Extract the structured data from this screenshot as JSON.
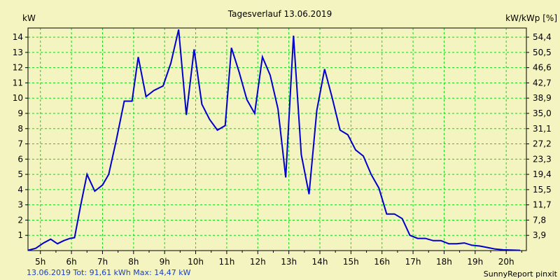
{
  "chart_data": {
    "type": "line",
    "title": "Tagesverlauf 13.06.2019",
    "ylabel_left": "kW",
    "ylabel_right": "kW/kWp [%]",
    "x_ticks": [
      "5h",
      "6h",
      "7h",
      "8h",
      "9h",
      "10h",
      "11h",
      "12h",
      "13h",
      "14h",
      "15h",
      "16h",
      "17h",
      "18h",
      "19h",
      "20h"
    ],
    "x_range_hours": [
      4.6,
      20.65
    ],
    "y_ticks_left": [
      "1",
      "2",
      "3",
      "4",
      "5",
      "6",
      "7",
      "8",
      "9",
      "10",
      "11",
      "12",
      "13",
      "14"
    ],
    "y_ticks_right": [
      "3,9",
      "7,8",
      "11,7",
      "15,5",
      "19,4",
      "23,3",
      "27,2",
      "31,1",
      "35,0",
      "38,9",
      "42,7",
      "46,6",
      "50,5",
      "54,4"
    ],
    "ylim": [
      0,
      14.6
    ],
    "grid": true,
    "series": [
      {
        "color": "#0000cc",
        "points": [
          [
            4.6,
            0.02
          ],
          [
            4.85,
            0.15
          ],
          [
            5.1,
            0.5
          ],
          [
            5.33,
            0.75
          ],
          [
            5.55,
            0.45
          ],
          [
            5.75,
            0.65
          ],
          [
            5.95,
            0.8
          ],
          [
            6.1,
            0.85
          ],
          [
            6.3,
            3.0
          ],
          [
            6.5,
            5.0
          ],
          [
            6.75,
            3.9
          ],
          [
            7.0,
            4.3
          ],
          [
            7.2,
            5.0
          ],
          [
            7.45,
            7.3
          ],
          [
            7.7,
            9.8
          ],
          [
            7.95,
            9.8
          ],
          [
            8.15,
            12.7
          ],
          [
            8.4,
            10.1
          ],
          [
            8.65,
            10.5
          ],
          [
            8.95,
            10.8
          ],
          [
            9.2,
            12.3
          ],
          [
            9.45,
            14.5
          ],
          [
            9.7,
            8.9
          ],
          [
            9.95,
            13.2
          ],
          [
            10.2,
            9.6
          ],
          [
            10.45,
            8.6
          ],
          [
            10.7,
            7.9
          ],
          [
            10.95,
            8.2
          ],
          [
            11.15,
            13.3
          ],
          [
            11.4,
            11.7
          ],
          [
            11.65,
            9.9
          ],
          [
            11.9,
            9.0
          ],
          [
            12.15,
            12.7
          ],
          [
            12.4,
            11.5
          ],
          [
            12.65,
            9.3
          ],
          [
            12.9,
            4.8
          ],
          [
            13.15,
            14.1
          ],
          [
            13.4,
            6.3
          ],
          [
            13.65,
            3.7
          ],
          [
            13.9,
            9.2
          ],
          [
            14.15,
            11.9
          ],
          [
            14.4,
            10.0
          ],
          [
            14.65,
            7.9
          ],
          [
            14.9,
            7.6
          ],
          [
            15.15,
            6.6
          ],
          [
            15.4,
            6.2
          ],
          [
            15.65,
            5.0
          ],
          [
            15.9,
            4.1
          ],
          [
            16.15,
            2.4
          ],
          [
            16.4,
            2.4
          ],
          [
            16.65,
            2.1
          ],
          [
            16.9,
            1.0
          ],
          [
            17.15,
            0.8
          ],
          [
            17.4,
            0.8
          ],
          [
            17.65,
            0.65
          ],
          [
            17.9,
            0.65
          ],
          [
            18.15,
            0.45
          ],
          [
            18.4,
            0.45
          ],
          [
            18.65,
            0.5
          ],
          [
            18.9,
            0.35
          ],
          [
            19.15,
            0.3
          ],
          [
            19.4,
            0.2
          ],
          [
            19.65,
            0.1
          ],
          [
            19.9,
            0.05
          ],
          [
            20.2,
            0.03
          ],
          [
            20.45,
            0.02
          ]
        ]
      }
    ]
  },
  "footer": {
    "left": "13.06.2019 Tot: 91,61 kWh Max: 14,47 kW",
    "right": "SunnyReport pinxit"
  },
  "colors": {
    "background": "#f4f4c0",
    "grid": "#22cc22",
    "line": "#0000cc",
    "footer_left": "#1a3fbf"
  }
}
